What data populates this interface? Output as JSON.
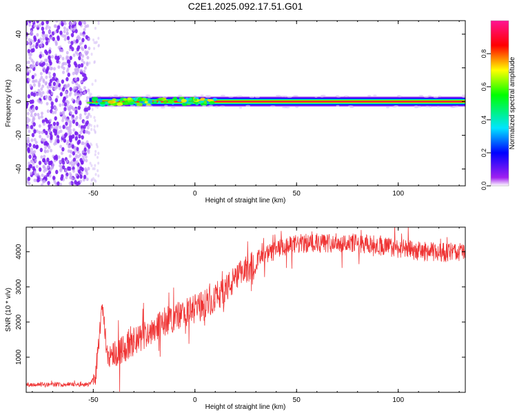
{
  "title": "C2E1.2025.092.17.51.G01",
  "chart_data": [
    {
      "type": "heatmap",
      "xlabel": "Height of straight line (km)",
      "ylabel": "Frequency (Hz)",
      "xlim": [
        -83,
        133
      ],
      "ylim": [
        -50,
        48
      ],
      "xticks": [
        "-50",
        "0",
        "50",
        "100"
      ],
      "yticks": [
        "-40",
        "-20",
        "0",
        "20",
        "40"
      ],
      "colorbar": {
        "label": "Normalized spectral amplitude",
        "range": [
          0,
          1
        ],
        "ticks": [
          "0.0",
          "0.2",
          "0.4",
          "0.6",
          "0.8"
        ]
      },
      "features": {
        "noise_region_km": [
          -83,
          -52
        ],
        "signal_band_start_km": -52,
        "signal_band_center_hz": 0,
        "signal_band_halfwidth_hz": 2
      }
    },
    {
      "type": "line",
      "xlabel": "Height of straight line (km)",
      "ylabel": "SNR (10 * v/v)",
      "xlim": [
        -83,
        133
      ],
      "ylim": [
        0,
        4700
      ],
      "xticks": [
        "-50",
        "0",
        "50",
        "100"
      ],
      "yticks": [
        "1000",
        "2000",
        "3000",
        "4000"
      ],
      "color": "#ef3333",
      "trend": {
        "x": [
          -83,
          -52,
          -49,
          -47,
          -46,
          -44,
          -43,
          -40,
          -30,
          -20,
          -10,
          0,
          10,
          20,
          30,
          40,
          50,
          60,
          70,
          80,
          90,
          100,
          110,
          120,
          133
        ],
        "y": [
          220,
          230,
          500,
          1500,
          2600,
          1500,
          1050,
          1100,
          1400,
          1850,
          2150,
          2350,
          2700,
          3200,
          3750,
          4050,
          4220,
          4250,
          4260,
          4240,
          4180,
          4100,
          4020,
          3980,
          4000
        ]
      }
    }
  ]
}
